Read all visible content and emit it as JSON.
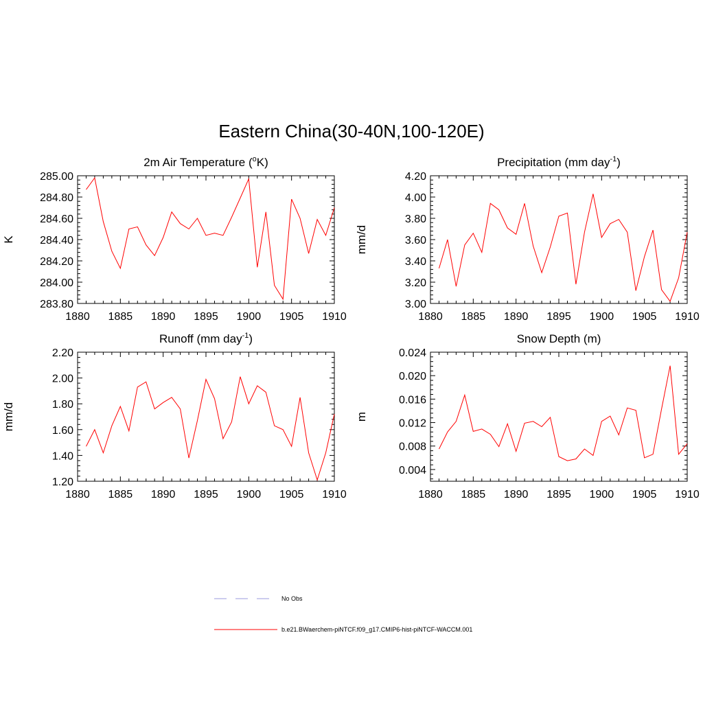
{
  "figure_title": "Eastern China(30-40N,100-120E)",
  "legend": [
    {
      "label": "No Obs",
      "color": "#9999dd",
      "style": "dashed"
    },
    {
      "label": "b.e21.BWaerchem-piNTCF.f09_g17.CMIP6-hist-piNTCF-WACCM.001",
      "color": "#ff0000",
      "style": "solid"
    }
  ],
  "chart_data": [
    {
      "type": "line",
      "title": "2m Air Temperature (",
      "title_sup": "o",
      "title_suffix": "K)",
      "ylabel": "K",
      "xlim": [
        1880,
        1910
      ],
      "ylim": [
        283.8,
        285.0
      ],
      "xticks": [
        1880,
        1885,
        1890,
        1895,
        1900,
        1905,
        1910
      ],
      "xticklabels": [
        "1880",
        "1885",
        "1890",
        "1895",
        "1900",
        "1905",
        "1910"
      ],
      "yticks": [
        283.8,
        284.0,
        284.2,
        284.4,
        284.6,
        284.8,
        285.0
      ],
      "yticklabels": [
        "283.80",
        "284.00",
        "284.20",
        "284.40",
        "284.60",
        "284.80",
        "285.00"
      ],
      "x": [
        1881,
        1882,
        1883,
        1884,
        1885,
        1886,
        1887,
        1888,
        1889,
        1890,
        1891,
        1892,
        1893,
        1894,
        1895,
        1896,
        1897,
        1898,
        1899,
        1900,
        1901,
        1902,
        1903,
        1904,
        1905,
        1906,
        1907,
        1908,
        1909,
        1910
      ],
      "series": [
        {
          "color": "#ff0000",
          "values": [
            284.87,
            284.98,
            284.57,
            284.29,
            284.13,
            284.5,
            284.52,
            284.35,
            284.25,
            284.42,
            284.66,
            284.55,
            284.5,
            284.6,
            284.44,
            284.46,
            284.44,
            284.61,
            284.79,
            284.97,
            284.14,
            284.66,
            283.97,
            283.84,
            284.78,
            284.6,
            284.27,
            284.59,
            284.44,
            284.7
          ]
        }
      ]
    },
    {
      "type": "line",
      "title": "Precipitation (mm day",
      "title_sup": "-1",
      "title_suffix": ")",
      "ylabel": "mm/d",
      "xlim": [
        1880,
        1910
      ],
      "ylim": [
        3.0,
        4.2
      ],
      "xticks": [
        1880,
        1885,
        1890,
        1895,
        1900,
        1905,
        1910
      ],
      "xticklabels": [
        "1880",
        "1885",
        "1890",
        "1895",
        "1900",
        "1905",
        "1910"
      ],
      "yticks": [
        3.0,
        3.2,
        3.4,
        3.6,
        3.8,
        4.0,
        4.2
      ],
      "yticklabels": [
        "3.00",
        "3.20",
        "3.40",
        "3.60",
        "3.80",
        "4.00",
        "4.20"
      ],
      "x": [
        1881,
        1882,
        1883,
        1884,
        1885,
        1886,
        1887,
        1888,
        1889,
        1890,
        1891,
        1892,
        1893,
        1894,
        1895,
        1896,
        1897,
        1898,
        1899,
        1900,
        1901,
        1902,
        1903,
        1904,
        1905,
        1906,
        1907,
        1908,
        1909,
        1910
      ],
      "series": [
        {
          "color": "#ff0000",
          "values": [
            3.33,
            3.6,
            3.16,
            3.55,
            3.66,
            3.48,
            3.94,
            3.88,
            3.71,
            3.65,
            3.94,
            3.54,
            3.29,
            3.53,
            3.82,
            3.85,
            3.18,
            3.67,
            4.03,
            3.62,
            3.75,
            3.79,
            3.67,
            3.12,
            3.44,
            3.69,
            3.13,
            3.02,
            3.24,
            3.67
          ]
        }
      ]
    },
    {
      "type": "line",
      "title": "Runoff (mm day",
      "title_sup": "-1",
      "title_suffix": ")",
      "ylabel": "mm/d",
      "xlim": [
        1880,
        1910
      ],
      "ylim": [
        1.2,
        2.2
      ],
      "xticks": [
        1880,
        1885,
        1890,
        1895,
        1900,
        1905,
        1910
      ],
      "xticklabels": [
        "1880",
        "1885",
        "1890",
        "1895",
        "1900",
        "1905",
        "1910"
      ],
      "yticks": [
        1.2,
        1.4,
        1.6,
        1.8,
        2.0,
        2.2
      ],
      "yticklabels": [
        "1.20",
        "1.40",
        "1.60",
        "1.80",
        "2.00",
        "2.20"
      ],
      "x": [
        1881,
        1882,
        1883,
        1884,
        1885,
        1886,
        1887,
        1888,
        1889,
        1890,
        1891,
        1892,
        1893,
        1894,
        1895,
        1896,
        1897,
        1898,
        1899,
        1900,
        1901,
        1902,
        1903,
        1904,
        1905,
        1906,
        1907,
        1908,
        1909,
        1910
      ],
      "series": [
        {
          "color": "#ff0000",
          "values": [
            1.47,
            1.6,
            1.42,
            1.63,
            1.78,
            1.59,
            1.93,
            1.97,
            1.76,
            1.81,
            1.85,
            1.76,
            1.38,
            1.67,
            1.99,
            1.84,
            1.53,
            1.66,
            2.01,
            1.8,
            1.94,
            1.89,
            1.63,
            1.6,
            1.47,
            1.85,
            1.42,
            1.21,
            1.42,
            1.72
          ]
        }
      ]
    },
    {
      "type": "line",
      "title": "Snow Depth (m)",
      "title_sup": "",
      "title_suffix": "",
      "ylabel": "m",
      "xlim": [
        1880,
        1910
      ],
      "ylim": [
        0.002,
        0.024
      ],
      "xticks": [
        1880,
        1885,
        1890,
        1895,
        1900,
        1905,
        1910
      ],
      "xticklabels": [
        "1880",
        "1885",
        "1890",
        "1895",
        "1900",
        "1905",
        "1910"
      ],
      "yticks": [
        0.004,
        0.008,
        0.012,
        0.016,
        0.02,
        0.024
      ],
      "yticklabels": [
        "0.004",
        "0.008",
        "0.012",
        "0.016",
        "0.020",
        "0.024"
      ],
      "x": [
        1881,
        1882,
        1883,
        1884,
        1885,
        1886,
        1887,
        1888,
        1889,
        1890,
        1891,
        1892,
        1893,
        1894,
        1895,
        1896,
        1897,
        1898,
        1899,
        1900,
        1901,
        1902,
        1903,
        1904,
        1905,
        1906,
        1907,
        1908,
        1909,
        1910
      ],
      "series": [
        {
          "color": "#ff0000",
          "values": [
            0.0075,
            0.0104,
            0.0122,
            0.0167,
            0.0105,
            0.0109,
            0.01,
            0.0079,
            0.0118,
            0.0071,
            0.0119,
            0.0122,
            0.0113,
            0.0129,
            0.0062,
            0.0055,
            0.0058,
            0.0075,
            0.0064,
            0.0122,
            0.0131,
            0.0099,
            0.0145,
            0.0141,
            0.006,
            0.0066,
            0.0143,
            0.0217,
            0.0066,
            0.0084
          ]
        }
      ]
    }
  ]
}
